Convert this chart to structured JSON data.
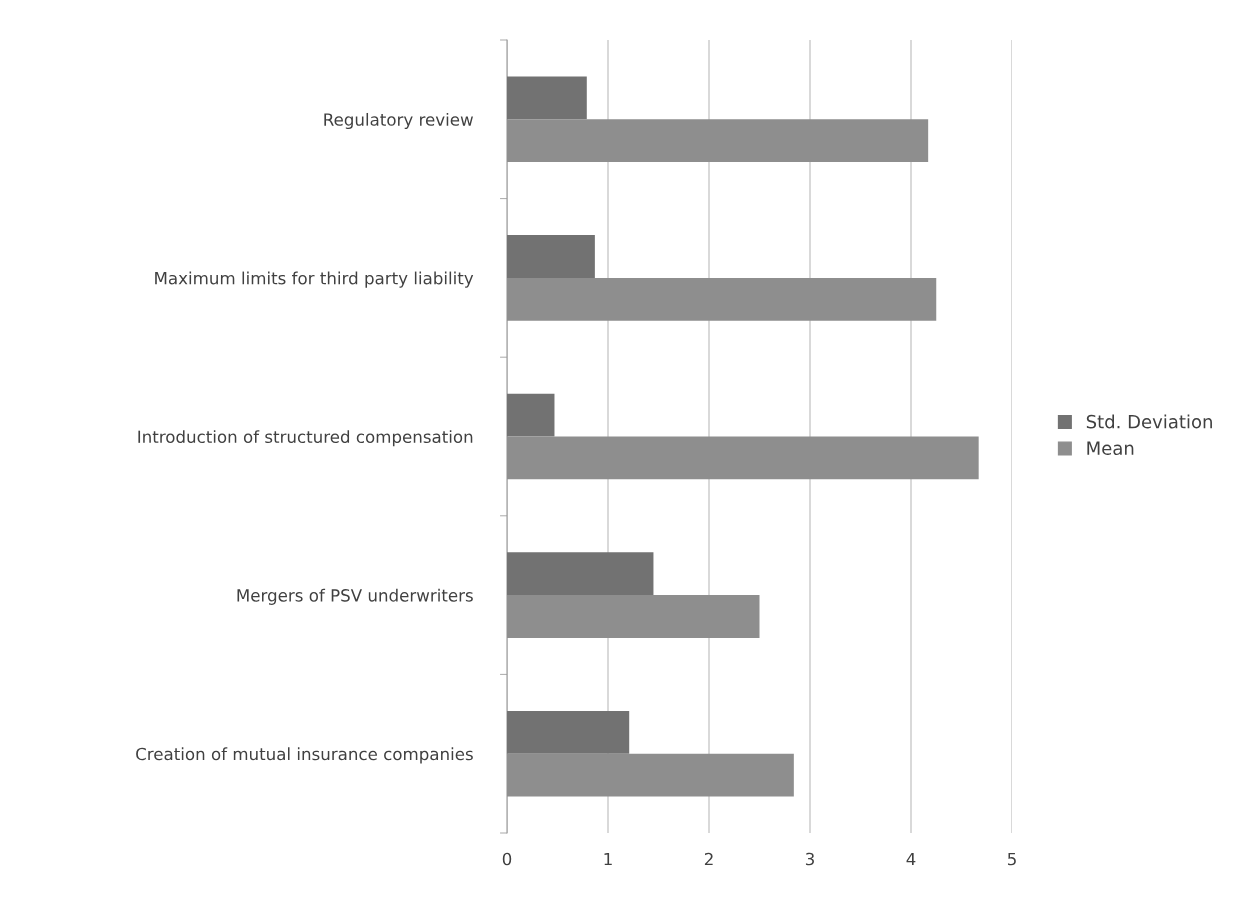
{
  "chart_data": {
    "type": "bar",
    "orientation": "horizontal",
    "categories": [
      "Regulatory review",
      "Maximum limits for third party liability",
      "Introduction of structured compensation",
      "Mergers of PSV underwriters",
      "Creation of mutual insurance companies"
    ],
    "series": [
      {
        "name": "Std. Deviation",
        "color": "#727272",
        "values": [
          0.79,
          0.87,
          0.47,
          1.45,
          1.21
        ]
      },
      {
        "name": "Mean",
        "color": "#8e8e8e",
        "values": [
          4.17,
          4.25,
          4.67,
          2.5,
          2.84
        ]
      }
    ],
    "xlim": [
      0,
      5
    ],
    "xticks": [
      0,
      1,
      2,
      3,
      4,
      5
    ],
    "grid": "x",
    "legend": "right"
  }
}
